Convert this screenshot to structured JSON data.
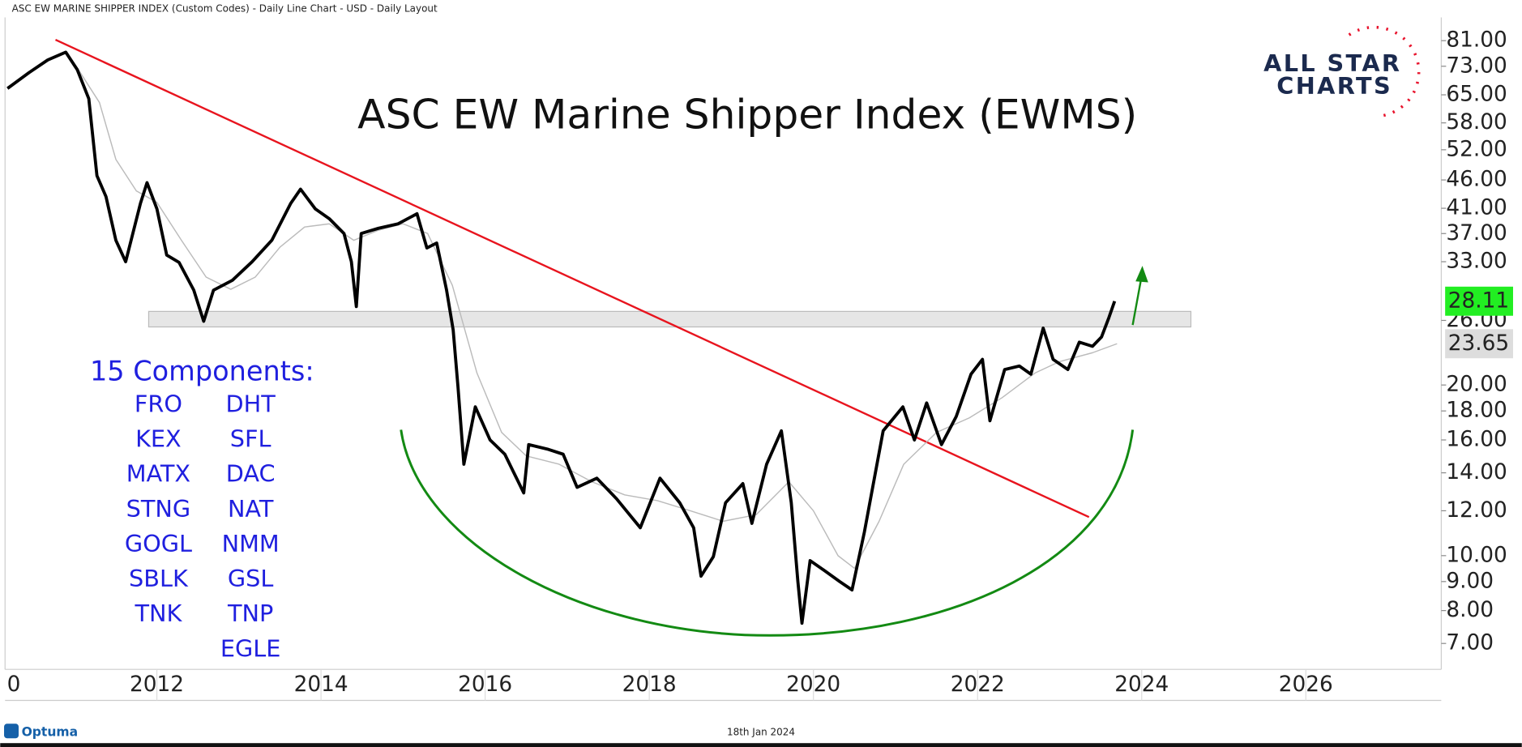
{
  "chart_data": {
    "type": "line",
    "header": "ASC EW MARINE SHIPPER INDEX (Custom Codes) - Daily Line Chart - USD - Daily Layout",
    "title": "ASC EW Marine Shipper Index (EWMS)",
    "components_title": "15 Components:",
    "components": [
      [
        "FRO",
        "KEX",
        "MATX",
        "STNG",
        "GOGL",
        "SBLK",
        "TNK"
      ],
      [
        "DHT",
        "SFL",
        "DAC",
        "NAT",
        "NMM",
        "GSL",
        "TNP",
        "EGLE"
      ]
    ],
    "logo": [
      "ALL STAR",
      "CHARTS"
    ],
    "footer_brand": "Optuma",
    "footer_date": "18th Jan 2024",
    "log_scale": true,
    "xlim": [
      2010.15,
      2027.65
    ],
    "xticks": [
      {
        "value": 2010,
        "label": "0"
      },
      2012,
      2014,
      2016,
      2018,
      2020,
      2022,
      2024,
      2026
    ],
    "ylim": [
      6.3,
      89
    ],
    "yticks": [
      {
        "value": 7,
        "label": "7.00"
      },
      {
        "value": 8,
        "label": "8.00"
      },
      {
        "value": 9,
        "label": "9.00"
      },
      {
        "value": 10,
        "label": "10.00"
      },
      {
        "value": 12,
        "label": "12.00"
      },
      {
        "value": 14,
        "label": "14.00"
      },
      {
        "value": 16,
        "label": "16.00"
      },
      {
        "value": 18,
        "label": "18.00"
      },
      {
        "value": 20,
        "label": "20.00"
      },
      {
        "value": 26,
        "label": "26.00"
      },
      {
        "value": 33,
        "label": "33.00"
      },
      {
        "value": 37,
        "label": "37.00"
      },
      {
        "value": 41,
        "label": "41.00"
      },
      {
        "value": 46,
        "label": "46.00"
      },
      {
        "value": 52,
        "label": "52.00"
      },
      {
        "value": 58,
        "label": "58.00"
      },
      {
        "value": 65,
        "label": "65.00"
      },
      {
        "value": 73,
        "label": "73.00"
      },
      {
        "value": 81,
        "label": "81.00"
      }
    ],
    "series": [
      {
        "color": "#000000",
        "label_color": "#22ee22",
        "x": [
          2010.18,
          2010.44,
          2010.67,
          2010.89,
          2011.03,
          2011.17,
          2011.27,
          2011.38,
          2011.5,
          2011.62,
          2011.8,
          2011.88,
          2012.0,
          2012.12,
          2012.27,
          2012.45,
          2012.57,
          2012.69,
          2012.92,
          2013.16,
          2013.4,
          2013.63,
          2013.75,
          2013.93,
          2014.1,
          2014.28,
          2014.37,
          2014.43,
          2014.49,
          2014.7,
          2014.94,
          2015.17,
          2015.29,
          2015.41,
          2015.53,
          2015.61,
          2015.67,
          2015.74,
          2015.88,
          2016.06,
          2016.24,
          2016.47,
          2016.53,
          2016.77,
          2016.95,
          2017.12,
          2017.36,
          2017.6,
          2017.89,
          2018.13,
          2018.37,
          2018.54,
          2018.63,
          2018.78,
          2018.93,
          2019.14,
          2019.25,
          2019.43,
          2019.61,
          2019.73,
          2019.81,
          2019.86,
          2019.96,
          2020.14,
          2020.32,
          2020.47,
          2020.62,
          2020.73,
          2020.85,
          2021.09,
          2021.23,
          2021.38,
          2021.56,
          2021.74,
          2021.92,
          2022.06,
          2022.15,
          2022.33,
          2022.51,
          2022.65,
          2022.8,
          2022.92,
          2023.1,
          2023.24,
          2023.4,
          2023.51,
          2023.6,
          2023.67
        ],
        "values": [
          66.7,
          71.1,
          74.9,
          77.3,
          72,
          64,
          46.8,
          43,
          36,
          33,
          41.8,
          45.5,
          40.9,
          33.9,
          32.9,
          29.4,
          25.9,
          29.4,
          30.6,
          33,
          36,
          41.8,
          44.3,
          40.9,
          39.3,
          37,
          33,
          27.5,
          37,
          37.8,
          38.5,
          40.1,
          34.9,
          35.6,
          29.4,
          25,
          19.8,
          14.5,
          18.3,
          16,
          15.1,
          12.9,
          15.7,
          15.4,
          15.1,
          13.2,
          13.7,
          12.6,
          11.2,
          13.7,
          12.4,
          11.2,
          9.2,
          9.96,
          12.4,
          13.4,
          11.4,
          14.5,
          16.6,
          12.4,
          9,
          7.6,
          9.8,
          9.4,
          9,
          8.7,
          11,
          13.4,
          16.6,
          18.3,
          16,
          18.6,
          15.7,
          17.6,
          20.9,
          22.2,
          17.3,
          21.3,
          21.6,
          20.9,
          25.2,
          22.2,
          21.3,
          23.8,
          23.4,
          24.3,
          26.3,
          28.11
        ]
      },
      {
        "color": "#bbbbbb",
        "label_color": "#dddddd",
        "x": [
          2011.03,
          2011.3,
          2011.5,
          2011.75,
          2012.0,
          2012.3,
          2012.6,
          2012.9,
          2013.2,
          2013.5,
          2013.8,
          2014.1,
          2014.4,
          2014.7,
          2015.0,
          2015.3,
          2015.6,
          2015.9,
          2016.2,
          2016.5,
          2016.9,
          2017.3,
          2017.7,
          2018.1,
          2018.5,
          2018.9,
          2019.3,
          2019.7,
          2020.0,
          2020.3,
          2020.5,
          2020.8,
          2021.1,
          2021.5,
          2021.9,
          2022.3,
          2022.7,
          2023.0,
          2023.4,
          2023.7
        ],
        "values": [
          72.5,
          63,
          50,
          44,
          42,
          36,
          31,
          29.5,
          31,
          35,
          38,
          38.5,
          36,
          37.5,
          38.5,
          37,
          30,
          21,
          16.5,
          15,
          14.5,
          13.5,
          12.8,
          12.5,
          12,
          11.5,
          11.8,
          13.5,
          12,
          10,
          9.5,
          11.5,
          14.5,
          16.5,
          17.5,
          19,
          21,
          22,
          22.8,
          23.65
        ]
      }
    ]
  }
}
